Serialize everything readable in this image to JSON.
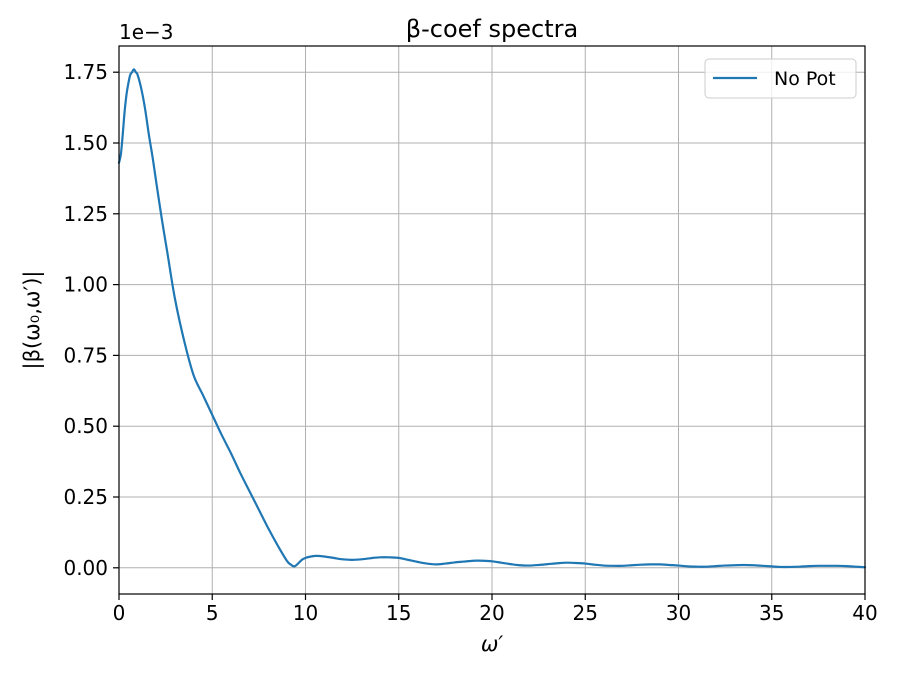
{
  "chart_data": {
    "type": "line",
    "title": "β-coef spectra",
    "xlabel": "ω′",
    "ylabel": "|β(ω₀,ω′)|",
    "offset_text": "1e−3",
    "xlim": [
      0,
      40
    ],
    "ylim": [
      -9.25e-05,
      0.0018425
    ],
    "x_ticks": [
      0,
      5,
      10,
      15,
      20,
      25,
      30,
      35,
      40
    ],
    "x_tick_labels": [
      "0",
      "5",
      "10",
      "15",
      "20",
      "25",
      "30",
      "35",
      "40"
    ],
    "y_ticks": [
      0,
      0.00025,
      0.0005,
      0.00075,
      0.001,
      0.00125,
      0.0015,
      0.00175
    ],
    "y_tick_labels": [
      "0.00",
      "0.25",
      "0.50",
      "0.75",
      "1.00",
      "1.25",
      "1.50",
      "1.75"
    ],
    "grid": true,
    "legend_position": "top-right",
    "series": [
      {
        "name": "No Pot",
        "color": "#1f77b4",
        "x": [
          0,
          0.1,
          0.2,
          0.3,
          0.4,
          0.5,
          0.6,
          0.7,
          0.8,
          0.9,
          1.0,
          1.2,
          1.4,
          1.6,
          1.8,
          2.0,
          2.3,
          2.6,
          3.0,
          3.5,
          4.0,
          4.5,
          5.0,
          5.5,
          6.0,
          6.5,
          7.0,
          7.5,
          8.0,
          8.5,
          9.0,
          9.2,
          9.4,
          9.6,
          9.8,
          10.0,
          10.3,
          10.6,
          11.0,
          11.5,
          12.0,
          12.5,
          13.0,
          13.5,
          14.0,
          14.5,
          15.0,
          15.5,
          16.0,
          16.5,
          17.0,
          17.5,
          18.0,
          18.5,
          19.0,
          19.5,
          20.0,
          20.5,
          21.0,
          21.5,
          22.0,
          22.5,
          23.0,
          23.5,
          24.0,
          24.5,
          25.0,
          25.5,
          26.0,
          26.5,
          27.0,
          27.5,
          28.0,
          28.5,
          29.0,
          29.5,
          30.0,
          30.5,
          31.0,
          31.5,
          32.0,
          32.5,
          33.0,
          33.5,
          34.0,
          34.5,
          35.0,
          35.5,
          36.0,
          36.5,
          37.0,
          37.5,
          38.0,
          38.5,
          39.0,
          39.5,
          40.0
        ],
        "y": [
          0.00143,
          0.00146,
          0.00153,
          0.00161,
          0.00167,
          0.00171,
          0.00174,
          0.00175,
          0.00176,
          0.00175,
          0.00174,
          0.00169,
          0.00162,
          0.00153,
          0.00145,
          0.00136,
          0.00123,
          0.00111,
          0.00095,
          0.0008,
          0.00068,
          0.00061,
          0.00054,
          0.00047,
          0.000405,
          0.000335,
          0.00027,
          0.000205,
          0.00014,
          8e-05,
          2.5e-05,
          1.2e-05,
          5e-06,
          1.5e-05,
          2.8e-05,
          3.5e-05,
          4e-05,
          4.2e-05,
          4e-05,
          3.5e-05,
          3e-05,
          2.8e-05,
          3e-05,
          3.4e-05,
          3.7e-05,
          3.7e-05,
          3.5e-05,
          2.8e-05,
          2.1e-05,
          1.5e-05,
          1.2e-05,
          1.5e-05,
          1.9e-05,
          2.2e-05,
          2.5e-05,
          2.5e-05,
          2.3e-05,
          1.8e-05,
          1.3e-05,
          9e-06,
          8e-06,
          1e-05,
          1.3e-05,
          1.6e-05,
          1.8e-05,
          1.7e-05,
          1.5e-05,
          1.1e-05,
          8e-06,
          7e-06,
          7e-06,
          9e-06,
          1.1e-05,
          1.2e-05,
          1.2e-05,
          1e-05,
          8e-06,
          5e-06,
          4e-06,
          4e-06,
          6e-06,
          8e-06,
          9e-06,
          1e-05,
          9e-06,
          7e-06,
          5e-06,
          3e-06,
          3e-06,
          4e-06,
          6e-06,
          7e-06,
          7e-06,
          7e-06,
          6e-06,
          4e-06,
          2e-06
        ]
      }
    ]
  }
}
